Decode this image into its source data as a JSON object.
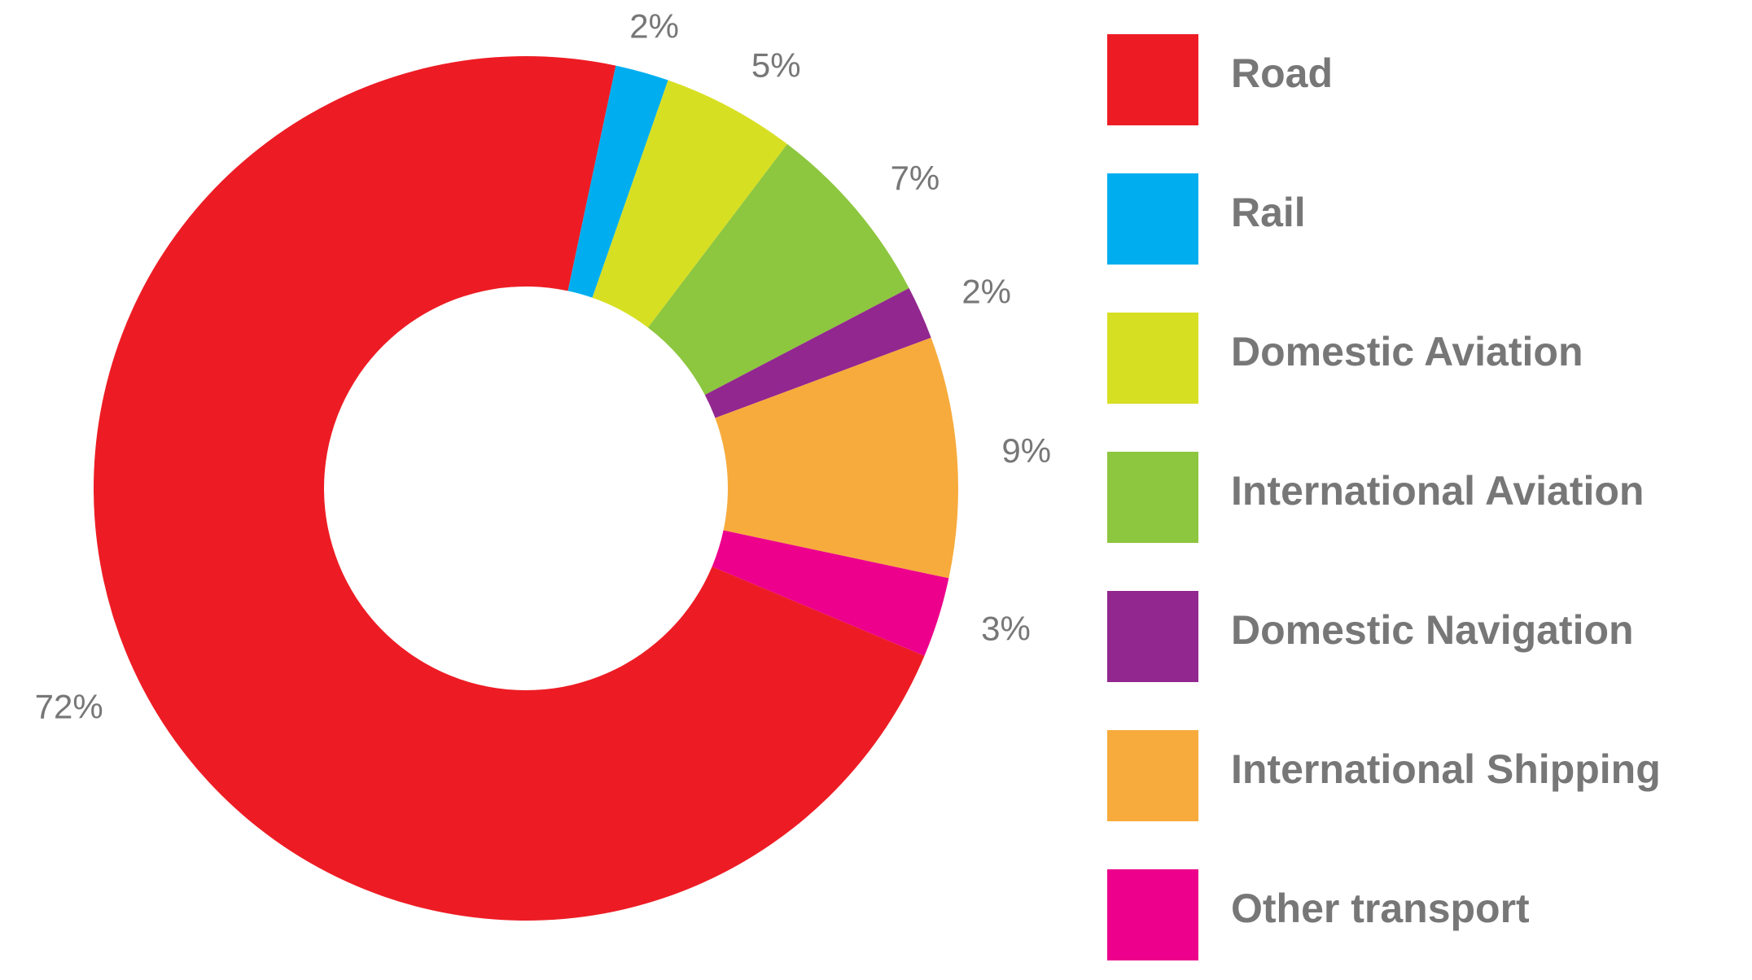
{
  "chart_data": {
    "type": "donut",
    "categories": [
      "Road",
      "Rail",
      "Domestic Aviation",
      "International Aviation",
      "Domestic Navigation",
      "International Shipping",
      "Other transport"
    ],
    "values": [
      72,
      2,
      5,
      7,
      2,
      9,
      3
    ],
    "value_labels": [
      "72%",
      "2%",
      "5%",
      "7%",
      "2%",
      "9%",
      "3%"
    ],
    "colors": [
      "#ed1c24",
      "#00aeef",
      "#d7df23",
      "#8dc63f",
      "#92278f",
      "#f7ab3c",
      "#ec008c"
    ],
    "legend": "right"
  }
}
